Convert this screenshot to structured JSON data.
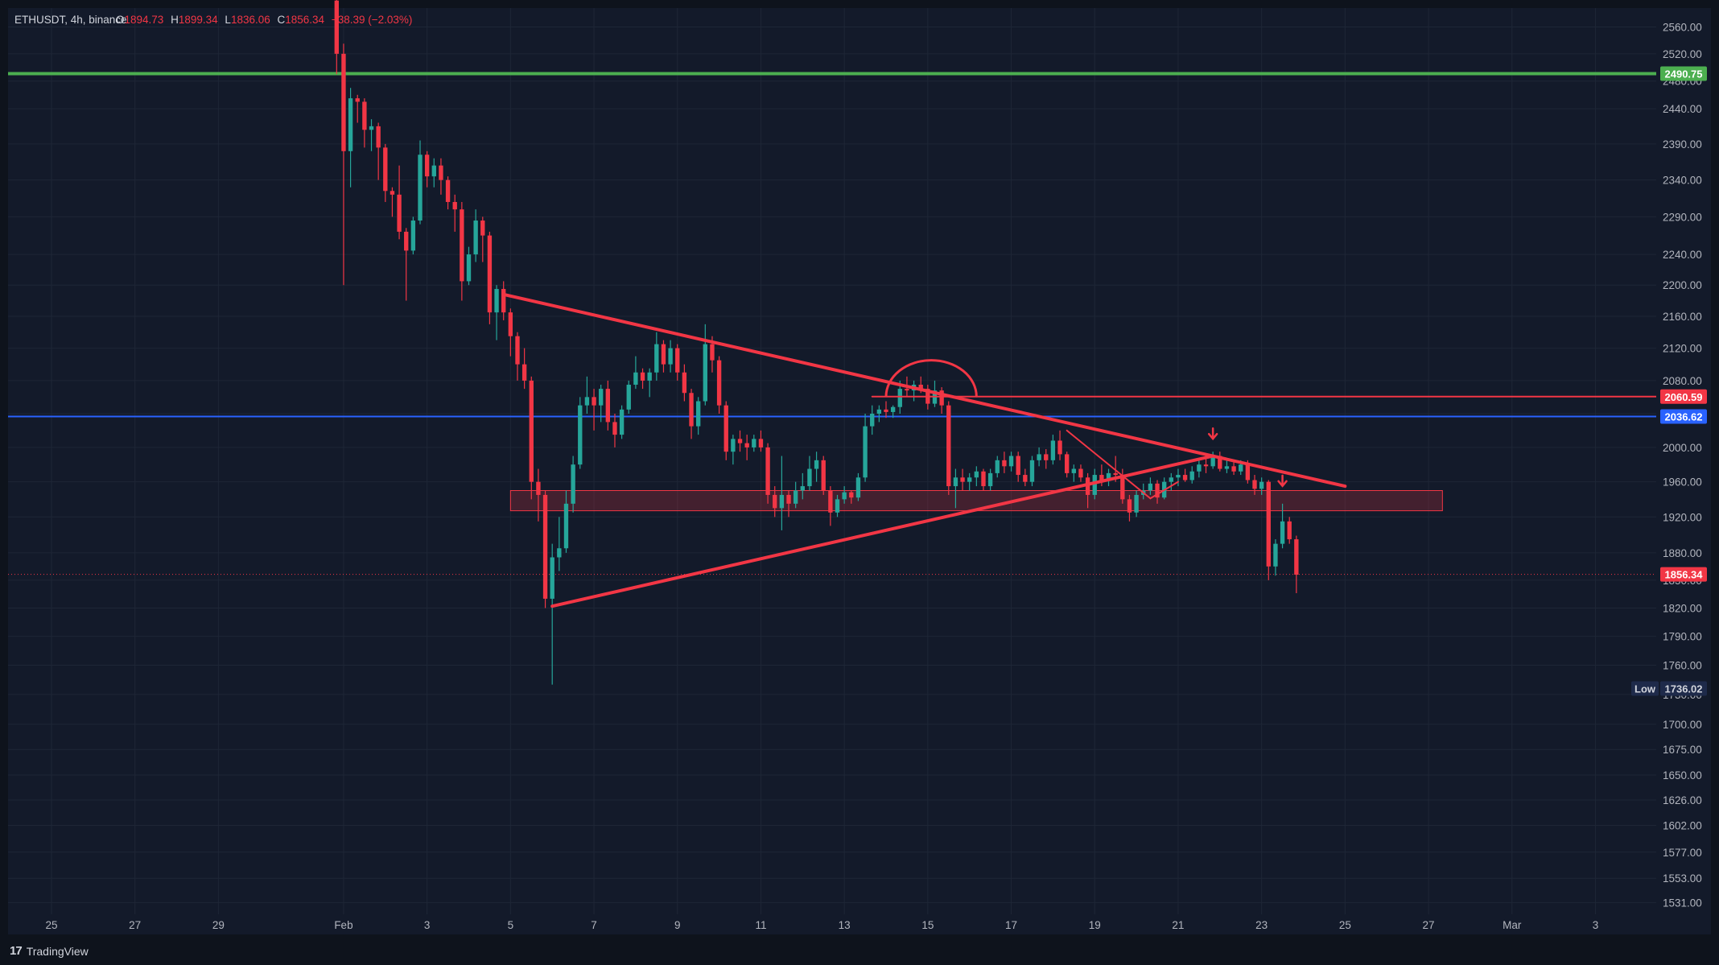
{
  "header": {
    "symbol": "ETHUSDT, 4h, binance",
    "o_label": "O",
    "o_value": "1894.73",
    "h_label": "H",
    "h_value": "1899.34",
    "l_label": "L",
    "l_value": "1836.06",
    "c_label": "C",
    "c_value": "1856.34",
    "change": "−38.39 (−2.03%)"
  },
  "branding": {
    "logo": "17",
    "name": "TradingView"
  },
  "colors": {
    "bg": "#0e131c",
    "panel": "#131a2a",
    "grid": "#1e2636",
    "text": "#b2b5be",
    "up": "#26a69a",
    "down": "#f23645",
    "drawing": "#f23645",
    "green_line": "#4caf50",
    "blue_line": "#2962ff"
  },
  "chart_data": {
    "type": "candlestick",
    "symbol": "ETHUSDT",
    "interval": "4h",
    "exchange": "binance",
    "y_axis": {
      "scale": "log",
      "ticks": [
        2560,
        2520,
        2480,
        2440,
        2390,
        2340,
        2290,
        2240,
        2200,
        2160,
        2120,
        2080,
        2040,
        2000,
        1960,
        1920,
        1880,
        1850,
        1820,
        1790,
        1760,
        1730,
        1700,
        1675,
        1650,
        1626,
        1602,
        1577,
        1553,
        1531
      ],
      "tick_labels": [
        "2560.00",
        "2520.00",
        "2480.00",
        "2440.00",
        "2390.00",
        "2340.00",
        "2290.00",
        "2240.00",
        "2200.00",
        "2160.00",
        "2120.00",
        "2080.00",
        "2040.00",
        "2000.00",
        "1960.00",
        "1920.00",
        "1880.00",
        "1850.00",
        "1820.00",
        "1790.00",
        "1760.00",
        "1730.00",
        "1700.00",
        "1675.00",
        "1650.00",
        "1626.00",
        "1602.00",
        "1577.00",
        "1553.00",
        "1531.00"
      ]
    },
    "x_axis": {
      "ticks": [
        {
          "label": "25",
          "date": "2023-01-25"
        },
        {
          "label": "27",
          "date": "2023-01-27"
        },
        {
          "label": "29",
          "date": "2023-01-29"
        },
        {
          "label": "Feb",
          "date": "2023-02-01"
        },
        {
          "label": "3",
          "date": "2023-02-03"
        },
        {
          "label": "5",
          "date": "2023-02-05"
        },
        {
          "label": "7",
          "date": "2023-02-07"
        },
        {
          "label": "9",
          "date": "2023-02-09"
        },
        {
          "label": "11",
          "date": "2023-02-11"
        },
        {
          "label": "13",
          "date": "2023-02-13"
        },
        {
          "label": "15",
          "date": "2023-02-15"
        },
        {
          "label": "17",
          "date": "2023-02-17"
        },
        {
          "label": "19",
          "date": "2023-02-19"
        },
        {
          "label": "21",
          "date": "2023-02-21"
        },
        {
          "label": "23",
          "date": "2023-02-23"
        },
        {
          "label": "25",
          "date": "2023-02-25"
        },
        {
          "label": "27",
          "date": "2023-02-27"
        },
        {
          "label": "Mar",
          "date": "2023-03-01"
        },
        {
          "label": "3",
          "date": "2023-03-03"
        }
      ]
    },
    "price_tags": [
      {
        "label": "2490.75",
        "value": 2490.75,
        "color": "#4caf50"
      },
      {
        "label": "2060.59",
        "value": 2060.59,
        "color": "#f23645"
      },
      {
        "label": "2036.62",
        "value": 2036.62,
        "color": "#2962ff"
      },
      {
        "label": "1856.34",
        "value": 1856.34,
        "color": "#f23645"
      }
    ],
    "low_marker": {
      "tag": "Low",
      "label": "1736.02",
      "value": 1736.02
    },
    "horizontal_lines": [
      {
        "value": 2490.75,
        "color": "#4caf50"
      },
      {
        "value": 2060.59,
        "color": "#f23645"
      },
      {
        "value": 2036.62,
        "color": "#2962ff"
      }
    ],
    "zone": {
      "from": "2023-02-05T00:00",
      "to": "2023-02-27T08:00",
      "low": 1927,
      "high": 1950
    },
    "trendlines": [
      {
        "from": {
          "t": "2023-02-04T20:00",
          "p": 2188
        },
        "to": {
          "t": "2023-02-25T00:00",
          "p": 1955
        }
      },
      {
        "from": {
          "t": "2023-02-06T00:00",
          "p": 1822
        },
        "to": {
          "t": "2023-02-21T20:00",
          "p": 1990
        }
      },
      {
        "from": {
          "t": "2023-02-18T08:00",
          "p": 2020
        },
        "to": {
          "t": "2023-02-20T08:00",
          "p": 1941
        }
      },
      {
        "from": {
          "t": "2023-02-20T08:00",
          "p": 1941
        },
        "to": {
          "t": "2023-02-21T00:00",
          "p": 1960
        }
      },
      {
        "from": {
          "t": "2023-02-13T16:00",
          "p": 2060.59
        },
        "to": {
          "t": "2023-02-16T04:00",
          "p": 2060.59
        }
      }
    ],
    "arc": {
      "from": {
        "t": "2023-02-14T00:00",
        "p": 2060.59
      },
      "to": {
        "t": "2023-02-16T04:00",
        "p": 2060.59
      },
      "peak": 2105
    },
    "arrows": [
      {
        "t": "2023-02-21T20:00",
        "p": 2013
      },
      {
        "t": "2023-02-23T12:00",
        "p": 1958
      }
    ],
    "current_price": 1856.34,
    "ohlc": [
      [
        "2023-01-31T20:00",
        2600,
        2620,
        2490,
        2520
      ],
      [
        "2023-02-01T00:00",
        2520,
        2535,
        2200,
        2380
      ],
      [
        "2023-02-01T04:00",
        2380,
        2470,
        2330,
        2455
      ],
      [
        "2023-02-01T08:00",
        2455,
        2460,
        2420,
        2450
      ],
      [
        "2023-02-01T12:00",
        2450,
        2455,
        2385,
        2410
      ],
      [
        "2023-02-01T16:00",
        2410,
        2425,
        2380,
        2415
      ],
      [
        "2023-02-01T20:00",
        2415,
        2420,
        2340,
        2385
      ],
      [
        "2023-02-02T00:00",
        2385,
        2390,
        2310,
        2325
      ],
      [
        "2023-02-02T04:00",
        2325,
        2330,
        2290,
        2320
      ],
      [
        "2023-02-02T08:00",
        2320,
        2360,
        2260,
        2270
      ],
      [
        "2023-02-02T12:00",
        2270,
        2275,
        2180,
        2245
      ],
      [
        "2023-02-02T16:00",
        2245,
        2290,
        2240,
        2285
      ],
      [
        "2023-02-02T20:00",
        2285,
        2395,
        2280,
        2375
      ],
      [
        "2023-02-03T00:00",
        2375,
        2380,
        2330,
        2345
      ],
      [
        "2023-02-03T04:00",
        2345,
        2370,
        2330,
        2360
      ],
      [
        "2023-02-03T08:00",
        2360,
        2370,
        2320,
        2340
      ],
      [
        "2023-02-03T12:00",
        2340,
        2345,
        2300,
        2310
      ],
      [
        "2023-02-03T16:00",
        2310,
        2320,
        2270,
        2300
      ],
      [
        "2023-02-03T20:00",
        2300,
        2310,
        2180,
        2205
      ],
      [
        "2023-02-04T00:00",
        2205,
        2250,
        2200,
        2240
      ],
      [
        "2023-02-04T04:00",
        2240,
        2300,
        2230,
        2285
      ],
      [
        "2023-02-04T08:00",
        2285,
        2290,
        2230,
        2265
      ],
      [
        "2023-02-04T12:00",
        2265,
        2270,
        2150,
        2165
      ],
      [
        "2023-02-04T16:00",
        2165,
        2200,
        2130,
        2195
      ],
      [
        "2023-02-04T20:00",
        2195,
        2205,
        2155,
        2165
      ],
      [
        "2023-02-05T00:00",
        2165,
        2170,
        2110,
        2135
      ],
      [
        "2023-02-05T04:00",
        2135,
        2140,
        2080,
        2100
      ],
      [
        "2023-02-05T08:00",
        2100,
        2120,
        2070,
        2080
      ],
      [
        "2023-02-05T12:00",
        2080,
        2085,
        1940,
        1960
      ],
      [
        "2023-02-05T16:00",
        1960,
        1975,
        1915,
        1945
      ],
      [
        "2023-02-05T20:00",
        1945,
        1950,
        1820,
        1830
      ],
      [
        "2023-02-06T00:00",
        1830,
        1890,
        1740,
        1875
      ],
      [
        "2023-02-06T04:00",
        1875,
        1920,
        1860,
        1885
      ],
      [
        "2023-02-06T08:00",
        1885,
        1950,
        1880,
        1935
      ],
      [
        "2023-02-06T12:00",
        1935,
        1990,
        1925,
        1980
      ],
      [
        "2023-02-06T16:00",
        1980,
        2060,
        1975,
        2050
      ],
      [
        "2023-02-06T20:00",
        2050,
        2085,
        2040,
        2060
      ],
      [
        "2023-02-07T00:00",
        2060,
        2070,
        2020,
        2050
      ],
      [
        "2023-02-07T04:00",
        2050,
        2075,
        2030,
        2070
      ],
      [
        "2023-02-07T08:00",
        2070,
        2080,
        2020,
        2030
      ],
      [
        "2023-02-07T12:00",
        2030,
        2040,
        2000,
        2015
      ],
      [
        "2023-02-07T16:00",
        2015,
        2050,
        2010,
        2045
      ],
      [
        "2023-02-07T20:00",
        2045,
        2080,
        2040,
        2075
      ],
      [
        "2023-02-08T00:00",
        2075,
        2110,
        2070,
        2090
      ],
      [
        "2023-02-08T04:00",
        2090,
        2095,
        2070,
        2080
      ],
      [
        "2023-02-08T08:00",
        2080,
        2095,
        2060,
        2090
      ],
      [
        "2023-02-08T12:00",
        2090,
        2140,
        2080,
        2125
      ],
      [
        "2023-02-08T16:00",
        2125,
        2130,
        2090,
        2100
      ],
      [
        "2023-02-08T20:00",
        2100,
        2130,
        2090,
        2120
      ],
      [
        "2023-02-09T00:00",
        2120,
        2125,
        2080,
        2090
      ],
      [
        "2023-02-09T04:00",
        2090,
        2100,
        2055,
        2065
      ],
      [
        "2023-02-09T08:00",
        2065,
        2070,
        2010,
        2025
      ],
      [
        "2023-02-09T12:00",
        2025,
        2060,
        2015,
        2055
      ],
      [
        "2023-02-09T16:00",
        2055,
        2150,
        2050,
        2125
      ],
      [
        "2023-02-09T20:00",
        2125,
        2135,
        2090,
        2105
      ],
      [
        "2023-02-10T00:00",
        2105,
        2110,
        2040,
        2050
      ],
      [
        "2023-02-10T04:00",
        2050,
        2055,
        1985,
        1995
      ],
      [
        "2023-02-10T08:00",
        1995,
        2015,
        1980,
        2010
      ],
      [
        "2023-02-10T12:00",
        2010,
        2020,
        1995,
        2005
      ],
      [
        "2023-02-10T16:00",
        2005,
        2015,
        1985,
        2000
      ],
      [
        "2023-02-10T20:00",
        2000,
        2015,
        1995,
        2010
      ],
      [
        "2023-02-11T00:00",
        2010,
        2020,
        1995,
        2000
      ],
      [
        "2023-02-11T04:00",
        2000,
        2005,
        1935,
        1945
      ],
      [
        "2023-02-11T08:00",
        1945,
        1955,
        1920,
        1930
      ],
      [
        "2023-02-11T12:00",
        1930,
        1990,
        1905,
        1945
      ],
      [
        "2023-02-11T16:00",
        1945,
        1950,
        1920,
        1935
      ],
      [
        "2023-02-11T20:00",
        1935,
        1960,
        1930,
        1950
      ],
      [
        "2023-02-12T00:00",
        1950,
        1970,
        1940,
        1955
      ],
      [
        "2023-02-12T04:00",
        1955,
        1990,
        1950,
        1975
      ],
      [
        "2023-02-12T08:00",
        1975,
        1995,
        1960,
        1985
      ],
      [
        "2023-02-12T12:00",
        1985,
        1990,
        1945,
        1950
      ],
      [
        "2023-02-12T16:00",
        1950,
        1955,
        1910,
        1925
      ],
      [
        "2023-02-12T20:00",
        1925,
        1945,
        1920,
        1940
      ],
      [
        "2023-02-13T00:00",
        1940,
        1955,
        1935,
        1948
      ],
      [
        "2023-02-13T04:00",
        1948,
        1950,
        1935,
        1942
      ],
      [
        "2023-02-13T08:00",
        1942,
        1970,
        1938,
        1965
      ],
      [
        "2023-02-13T12:00",
        1965,
        2040,
        1960,
        2025
      ],
      [
        "2023-02-13T16:00",
        2025,
        2050,
        2015,
        2040
      ],
      [
        "2023-02-13T20:00",
        2040,
        2050,
        2030,
        2045
      ],
      [
        "2023-02-14T00:00",
        2045,
        2055,
        2035,
        2042
      ],
      [
        "2023-02-14T04:00",
        2042,
        2050,
        2035,
        2048
      ],
      [
        "2023-02-14T08:00",
        2048,
        2080,
        2040,
        2070
      ],
      [
        "2023-02-14T12:00",
        2070,
        2085,
        2060,
        2068
      ],
      [
        "2023-02-14T16:00",
        2068,
        2080,
        2055,
        2075
      ],
      [
        "2023-02-14T20:00",
        2075,
        2085,
        2065,
        2070
      ],
      [
        "2023-02-15T00:00",
        2070,
        2075,
        2045,
        2052
      ],
      [
        "2023-02-15T04:00",
        2052,
        2080,
        2048,
        2068
      ],
      [
        "2023-02-15T08:00",
        2068,
        2072,
        2040,
        2050
      ],
      [
        "2023-02-15T12:00",
        2050,
        2055,
        1945,
        1955
      ],
      [
        "2023-02-15T16:00",
        1955,
        1975,
        1930,
        1965
      ],
      [
        "2023-02-15T20:00",
        1965,
        1975,
        1950,
        1960
      ],
      [
        "2023-02-16T00:00",
        1960,
        1970,
        1950,
        1965
      ],
      [
        "2023-02-16T04:00",
        1965,
        1978,
        1955,
        1972
      ],
      [
        "2023-02-16T08:00",
        1972,
        1975,
        1950,
        1955
      ],
      [
        "2023-02-16T12:00",
        1955,
        1975,
        1950,
        1970
      ],
      [
        "2023-02-16T16:00",
        1970,
        1990,
        1965,
        1985
      ],
      [
        "2023-02-16T20:00",
        1985,
        1995,
        1970,
        1978
      ],
      [
        "2023-02-17T00:00",
        1978,
        1995,
        1972,
        1990
      ],
      [
        "2023-02-17T04:00",
        1990,
        1995,
        1960,
        1968
      ],
      [
        "2023-02-17T08:00",
        1968,
        1975,
        1955,
        1960
      ],
      [
        "2023-02-17T12:00",
        1960,
        1990,
        1955,
        1985
      ],
      [
        "2023-02-17T16:00",
        1985,
        2000,
        1978,
        1992
      ],
      [
        "2023-02-17T20:00",
        1992,
        1998,
        1975,
        1985
      ],
      [
        "2023-02-18T00:00",
        1985,
        2015,
        1980,
        2008
      ],
      [
        "2023-02-18T04:00",
        2008,
        2020,
        1985,
        1992
      ],
      [
        "2023-02-18T08:00",
        1992,
        1995,
        1965,
        1970
      ],
      [
        "2023-02-18T12:00",
        1970,
        1980,
        1960,
        1975
      ],
      [
        "2023-02-18T16:00",
        1975,
        1980,
        1960,
        1965
      ],
      [
        "2023-02-18T20:00",
        1965,
        1970,
        1930,
        1945
      ],
      [
        "2023-02-19T00:00",
        1945,
        1975,
        1940,
        1968
      ],
      [
        "2023-02-19T04:00",
        1968,
        1980,
        1955,
        1962
      ],
      [
        "2023-02-19T08:00",
        1962,
        1975,
        1955,
        1970
      ],
      [
        "2023-02-19T12:00",
        1970,
        1990,
        1960,
        1968
      ],
      [
        "2023-02-19T16:00",
        1968,
        1975,
        1935,
        1940
      ],
      [
        "2023-02-19T20:00",
        1940,
        1945,
        1915,
        1925
      ],
      [
        "2023-02-20T00:00",
        1925,
        1950,
        1920,
        1945
      ],
      [
        "2023-02-20T04:00",
        1945,
        1958,
        1940,
        1950
      ],
      [
        "2023-02-20T08:00",
        1950,
        1965,
        1945,
        1958
      ],
      [
        "2023-02-20T12:00",
        1958,
        1962,
        1935,
        1942
      ],
      [
        "2023-02-20T16:00",
        1942,
        1965,
        1940,
        1960
      ],
      [
        "2023-02-20T20:00",
        1960,
        1970,
        1950,
        1965
      ],
      [
        "2023-02-21T00:00",
        1965,
        1975,
        1955,
        1968
      ],
      [
        "2023-02-21T04:00",
        1968,
        1975,
        1960,
        1962
      ],
      [
        "2023-02-21T08:00",
        1962,
        1978,
        1958,
        1972
      ],
      [
        "2023-02-21T12:00",
        1972,
        1985,
        1965,
        1980
      ],
      [
        "2023-02-21T16:00",
        1980,
        1990,
        1970,
        1978
      ],
      [
        "2023-02-21T20:00",
        1978,
        1995,
        1975,
        1990
      ],
      [
        "2023-02-22T00:00",
        1990,
        1995,
        1972,
        1975
      ],
      [
        "2023-02-22T04:00",
        1975,
        1985,
        1970,
        1978
      ],
      [
        "2023-02-22T08:00",
        1978,
        1985,
        1968,
        1972
      ],
      [
        "2023-02-22T12:00",
        1972,
        1985,
        1968,
        1980
      ],
      [
        "2023-02-22T16:00",
        1980,
        1985,
        1958,
        1962
      ],
      [
        "2023-02-22T20:00",
        1962,
        1968,
        1945,
        1952
      ],
      [
        "2023-02-23T00:00",
        1952,
        1965,
        1945,
        1960
      ],
      [
        "2023-02-23T04:00",
        1960,
        1962,
        1850,
        1865
      ],
      [
        "2023-02-23T08:00",
        1865,
        1895,
        1855,
        1890
      ],
      [
        "2023-02-23T12:00",
        1890,
        1935,
        1885,
        1915
      ],
      [
        "2023-02-23T16:00",
        1915,
        1920,
        1890,
        1895
      ],
      [
        "2023-02-23T20:00",
        1895,
        1899,
        1836,
        1856
      ]
    ]
  }
}
